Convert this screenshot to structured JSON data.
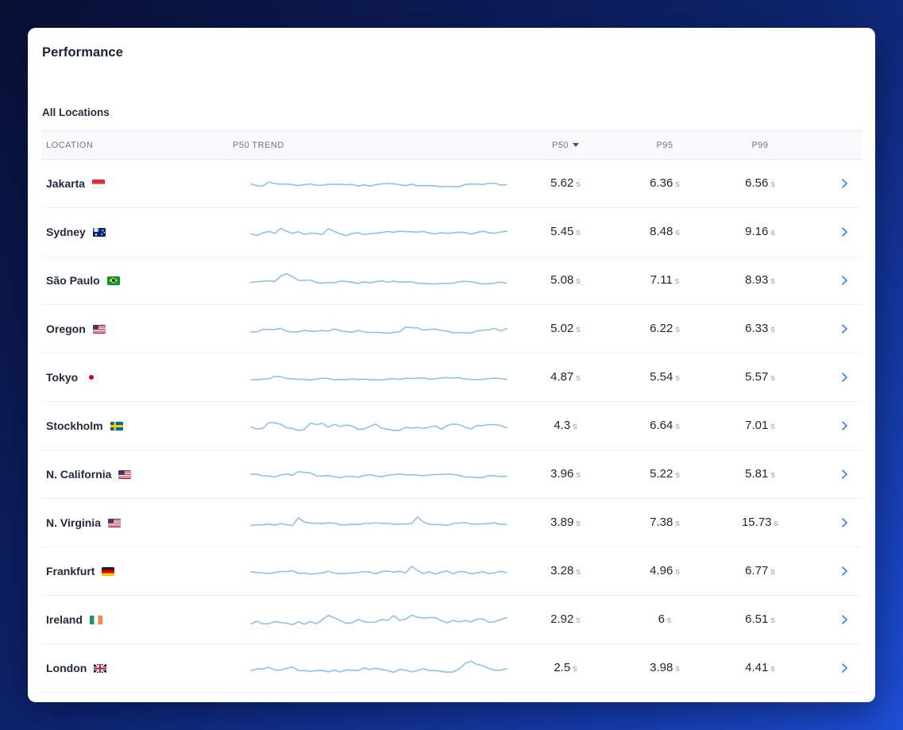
{
  "header": {
    "title": "Performance"
  },
  "section": {
    "title": "All Locations"
  },
  "colors": {
    "accent": "#3b82f6",
    "sparkline": "#92c0e6"
  },
  "table": {
    "unit": "s",
    "sort": {
      "column": "p50",
      "direction": "desc"
    },
    "columns": {
      "location": "LOCATION",
      "trend": "P50 TREND",
      "p50": "P50",
      "p95": "P95",
      "p99": "P99"
    },
    "rows": [
      {
        "location": "Jakarta",
        "flag": "indonesia",
        "p50": "5.62",
        "p95": "6.36",
        "p99": "6.56",
        "spark": {
          "seed": 7,
          "amp": 3.2,
          "spikes": 1,
          "spike_h": 8
        }
      },
      {
        "location": "Sydney",
        "flag": "australia",
        "p50": "5.45",
        "p95": "8.48",
        "p99": "9.16",
        "spark": {
          "seed": 12,
          "amp": 4.5,
          "spikes": 2,
          "spike_h": 12
        }
      },
      {
        "location": "São Paulo",
        "flag": "brazil",
        "p50": "5.08",
        "p95": "7.11",
        "p99": "8.93",
        "spark": {
          "seed": 23,
          "amp": 3.4,
          "spikes": 2,
          "spike_h": 13
        }
      },
      {
        "location": "Oregon",
        "flag": "usa",
        "p50": "5.02",
        "p95": "6.22",
        "p99": "6.33",
        "spark": {
          "seed": 31,
          "amp": 4.6,
          "spikes": 1,
          "spike_h": 9
        }
      },
      {
        "location": "Tokyo",
        "flag": "japan",
        "p50": "4.87",
        "p95": "5.54",
        "p99": "5.57",
        "spark": {
          "seed": 45,
          "amp": 2.2,
          "spikes": 1,
          "spike_h": 6
        }
      },
      {
        "location": "Stockholm",
        "flag": "sweden",
        "p50": "4.3",
        "p95": "6.64",
        "p99": "7.01",
        "spark": {
          "seed": 52,
          "amp": 6.5,
          "spikes": 2,
          "spike_h": 12
        }
      },
      {
        "location": "N. California",
        "flag": "usa",
        "p50": "3.96",
        "p95": "5.22",
        "p99": "5.81",
        "spark": {
          "seed": 66,
          "amp": 3.4,
          "spikes": 1,
          "spike_h": 9
        }
      },
      {
        "location": "N. Virginia",
        "flag": "usa",
        "p50": "3.89",
        "p95": "7.38",
        "p99": "15.73",
        "spark": {
          "seed": 74,
          "amp": 2.8,
          "spikes": 2,
          "spike_h": 16
        }
      },
      {
        "location": "Frankfurt",
        "flag": "germany",
        "p50": "3.28",
        "p95": "4.96",
        "p99": "6.77",
        "spark": {
          "seed": 83,
          "amp": 4.4,
          "spikes": 1,
          "spike_h": 15
        }
      },
      {
        "location": "Ireland",
        "flag": "ireland",
        "p50": "2.92",
        "p95": "6",
        "p99": "6.51",
        "spark": {
          "seed": 95,
          "amp": 6.5,
          "spikes": 3,
          "spike_h": 12
        }
      },
      {
        "location": "London",
        "flag": "uk",
        "p50": "2.5",
        "p95": "3.98",
        "p99": "4.41",
        "spark": {
          "seed": 104,
          "amp": 5.2,
          "spikes": 2,
          "spike_h": 13
        }
      }
    ]
  }
}
